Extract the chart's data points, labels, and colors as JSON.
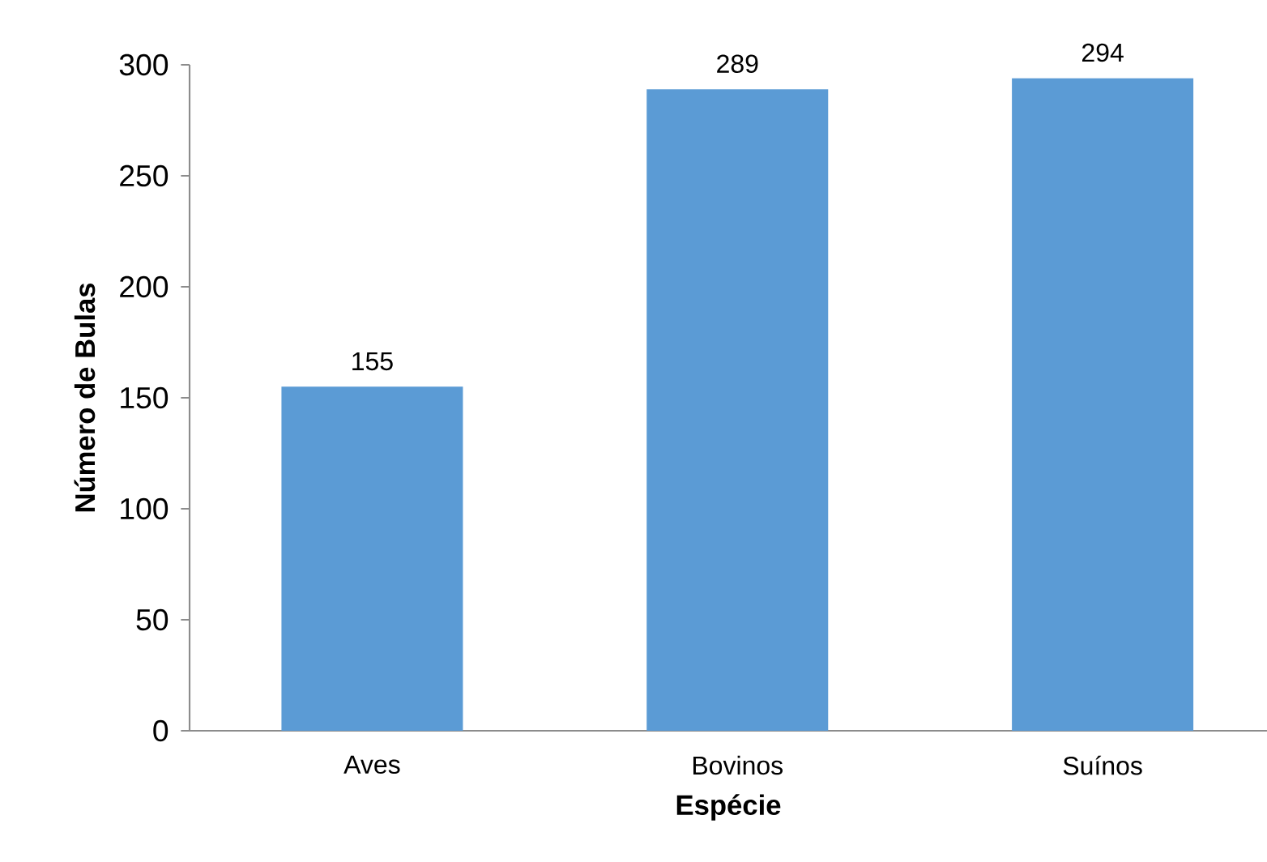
{
  "chart_data": {
    "type": "bar",
    "xlabel": "Espécie",
    "ylabel": "Número de Bulas",
    "categories": [
      "Aves",
      "Bovinos",
      "Suínos"
    ],
    "values": [
      155,
      289,
      294
    ],
    "color": "#5b9bd5",
    "ylim": [
      0,
      300
    ],
    "yticks": [
      0,
      50,
      100,
      150,
      200,
      250,
      300
    ],
    "data_labels": true,
    "grid": false
  }
}
